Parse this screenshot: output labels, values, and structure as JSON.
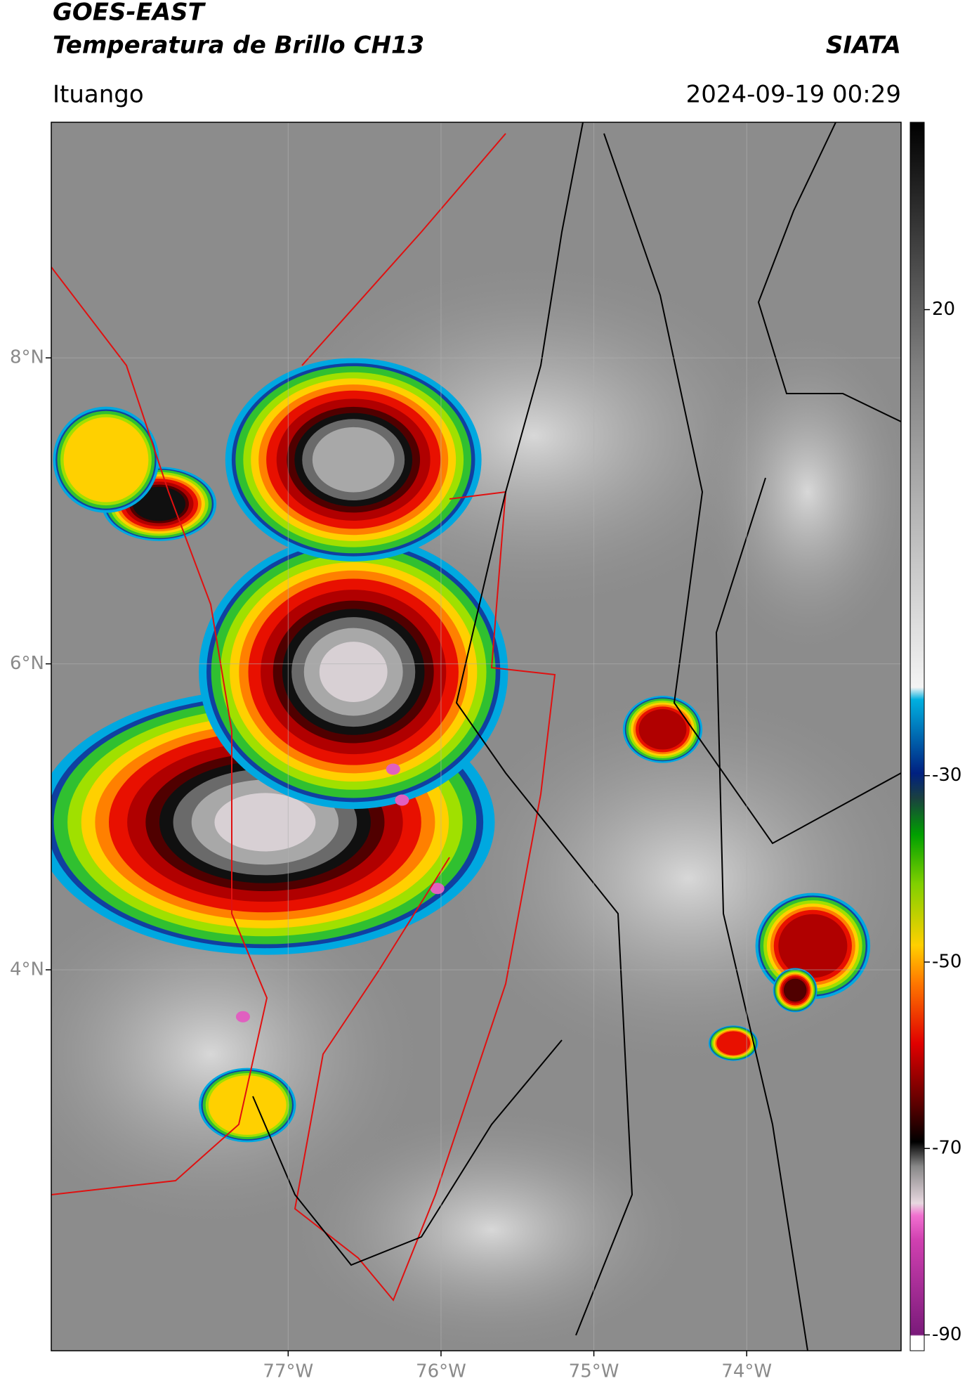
{
  "header": {
    "satellite": "GOES-EAST",
    "product": "Temperatura de Brillo CH13",
    "agency": "SIATA",
    "region": "Ituango",
    "datetime": "2024-09-19 00:29"
  },
  "map": {
    "lon_range": [
      -78.55,
      -72.99
    ],
    "lat_range": [
      1.51,
      9.54
    ],
    "lat_ticks": [
      {
        "value": 8,
        "label": "8°N"
      },
      {
        "value": 6,
        "label": "6°N"
      },
      {
        "value": 4,
        "label": "4°N"
      }
    ],
    "lon_ticks": [
      {
        "value": -77,
        "label": "77°W"
      },
      {
        "value": -76,
        "label": "76°W"
      },
      {
        "value": -75,
        "label": "75°W"
      },
      {
        "value": -74,
        "label": "74°W"
      }
    ],
    "grid": true
  },
  "colorbar": {
    "range": [
      -91.7,
      40.1
    ],
    "ticks": [
      20,
      -30,
      -50,
      -70,
      -90
    ]
  }
}
